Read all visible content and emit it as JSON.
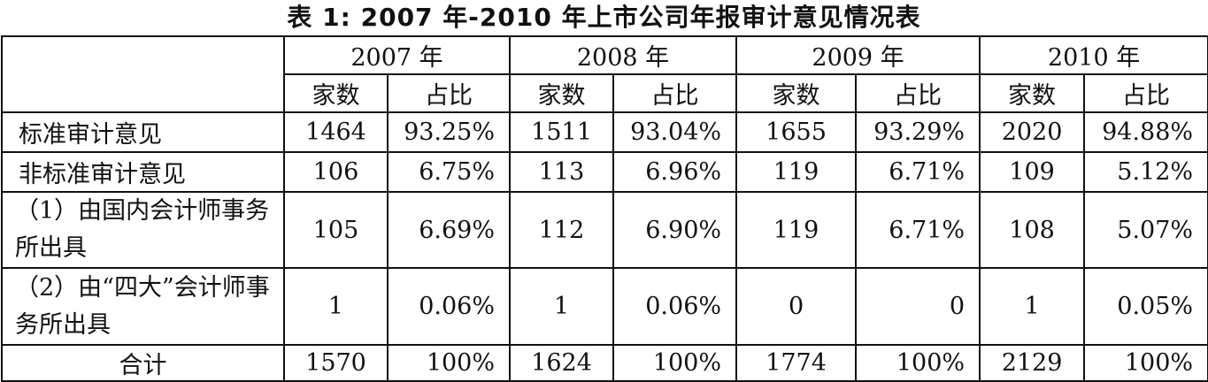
{
  "title": "表 1: 2007 年-2010 年上市公司年报审计意见情况表",
  "years": [
    "2007 年",
    "2008 年",
    "2009 年",
    "2010 年"
  ],
  "subheaders": {
    "count": "家数",
    "ratio": "占比"
  },
  "rows": [
    {
      "label": "标准审计意见",
      "cells": [
        "1464",
        "93.25%",
        "1511",
        "93.04%",
        "1655",
        "93.29%",
        "2020",
        "94.88%"
      ]
    },
    {
      "label": "非标准审计意见",
      "cells": [
        "106",
        "6.75%",
        "113",
        "6.96%",
        "119",
        "6.71%",
        "109",
        "5.12%"
      ]
    },
    {
      "label": "（1）由国内会计师事务所出具",
      "cells": [
        "105",
        "6.69%",
        "112",
        "6.90%",
        "119",
        "6.71%",
        "108",
        "5.07%"
      ]
    },
    {
      "label": "（2）由“四大”会计师事务所出具",
      "cells": [
        "1",
        "0.06%",
        "1",
        "0.06%",
        "0",
        "0",
        "1",
        "0.05%"
      ]
    },
    {
      "label": "合计",
      "cells": [
        "1570",
        "100%",
        "1624",
        "100%",
        "1774",
        "100%",
        "2129",
        "100%"
      ]
    }
  ]
}
